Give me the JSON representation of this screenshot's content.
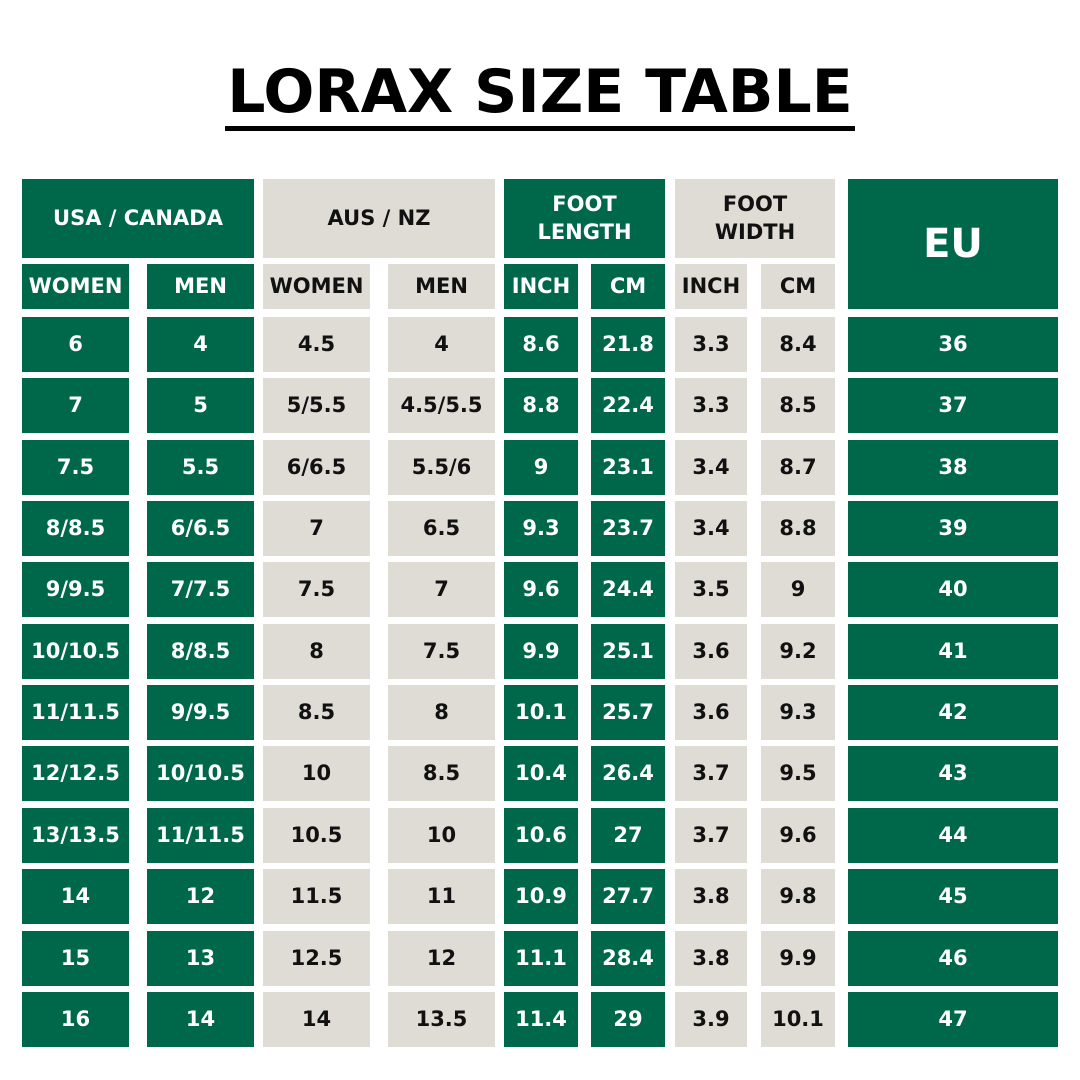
{
  "title": "LORAX SIZE TABLE",
  "colors": {
    "green": "#00684a",
    "light": "#dfdcd6",
    "text_dark": "#111111",
    "text_light": "#ffffff"
  },
  "headers": {
    "usa_canada": "USA / CANADA",
    "aus_nz": "AUS / NZ",
    "foot_length": "FOOT\nLENGTH",
    "foot_width": "FOOT\nWIDTH",
    "eu": "EU",
    "sub": [
      "WOMEN",
      "MEN",
      "WOMEN",
      "MEN",
      "INCH",
      "CM",
      "INCH",
      "CM"
    ]
  },
  "rows": [
    [
      "6",
      "4",
      "4.5",
      "4",
      "8.6",
      "21.8",
      "3.3",
      "8.4",
      "36"
    ],
    [
      "7",
      "5",
      "5/5.5",
      "4.5/5.5",
      "8.8",
      "22.4",
      "3.3",
      "8.5",
      "37"
    ],
    [
      "7.5",
      "5.5",
      "6/6.5",
      "5.5/6",
      "9",
      "23.1",
      "3.4",
      "8.7",
      "38"
    ],
    [
      "8/8.5",
      "6/6.5",
      "7",
      "6.5",
      "9.3",
      "23.7",
      "3.4",
      "8.8",
      "39"
    ],
    [
      "9/9.5",
      "7/7.5",
      "7.5",
      "7",
      "9.6",
      "24.4",
      "3.5",
      "9",
      "40"
    ],
    [
      "10/10.5",
      "8/8.5",
      "8",
      "7.5",
      "9.9",
      "25.1",
      "3.6",
      "9.2",
      "41"
    ],
    [
      "11/11.5",
      "9/9.5",
      "8.5",
      "8",
      "10.1",
      "25.7",
      "3.6",
      "9.3",
      "42"
    ],
    [
      "12/12.5",
      "10/10.5",
      "10",
      "8.5",
      "10.4",
      "26.4",
      "3.7",
      "9.5",
      "43"
    ],
    [
      "13/13.5",
      "11/11.5",
      "10.5",
      "10",
      "10.6",
      "27",
      "3.7",
      "9.6",
      "44"
    ],
    [
      "14",
      "12",
      "11.5",
      "11",
      "10.9",
      "27.7",
      "3.8",
      "9.8",
      "45"
    ],
    [
      "15",
      "13",
      "12.5",
      "12",
      "11.1",
      "28.4",
      "3.8",
      "9.9",
      "46"
    ],
    [
      "16",
      "14",
      "14",
      "13.5",
      "11.4",
      "29",
      "3.9",
      "10.1",
      "47"
    ]
  ]
}
